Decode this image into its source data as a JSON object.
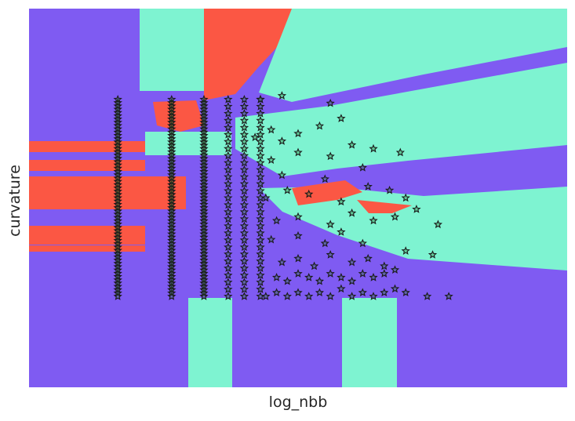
{
  "chart_data": {
    "type": "scatter",
    "title": "",
    "xlabel": "log_nbb",
    "ylabel": "curvature",
    "xlim": [
      0,
      1
    ],
    "ylim": [
      0,
      1
    ],
    "grid": false,
    "legend": "none",
    "ticks": "hidden",
    "colors": {
      "region_a": "#7f5bf2",
      "region_b": "#7ef3d1",
      "region_c": "#fb5744",
      "marker_edge": "#1a1a1a",
      "marker_fill": "#2f7a2f"
    },
    "marker": "star",
    "column_x": [
      0.165,
      0.265,
      0.325,
      0.37,
      0.4,
      0.43
    ],
    "column_y_range": [
      0.24,
      0.76
    ],
    "series": [
      {
        "x": [
          0.44,
          0.46,
          0.48,
          0.5,
          0.52,
          0.54,
          0.56,
          0.58,
          0.6,
          0.62,
          0.64,
          0.66,
          0.68,
          0.7,
          0.74,
          0.78,
          0.46,
          0.48,
          0.5,
          0.52,
          0.54,
          0.56,
          0.58,
          0.6,
          0.62,
          0.64,
          0.66,
          0.68,
          0.47,
          0.5,
          0.53,
          0.56,
          0.6,
          0.63,
          0.66,
          0.7,
          0.75,
          0.45,
          0.5,
          0.55,
          0.58,
          0.62,
          0.46,
          0.5,
          0.56,
          0.6,
          0.64,
          0.68,
          0.72,
          0.76,
          0.44,
          0.48,
          0.52,
          0.58,
          0.63,
          0.67,
          0.7,
          0.47,
          0.55,
          0.62,
          0.45,
          0.5,
          0.56,
          0.6,
          0.64,
          0.69,
          0.42,
          0.45,
          0.47,
          0.5,
          0.54,
          0.58,
          0.56,
          0.43,
          0.47
        ],
        "y": [
          0.24,
          0.25,
          0.24,
          0.25,
          0.24,
          0.25,
          0.24,
          0.26,
          0.24,
          0.25,
          0.24,
          0.25,
          0.26,
          0.25,
          0.24,
          0.24,
          0.29,
          0.28,
          0.3,
          0.29,
          0.28,
          0.3,
          0.29,
          0.28,
          0.3,
          0.29,
          0.3,
          0.31,
          0.33,
          0.34,
          0.32,
          0.35,
          0.33,
          0.34,
          0.32,
          0.36,
          0.35,
          0.39,
          0.4,
          0.38,
          0.41,
          0.38,
          0.44,
          0.45,
          0.43,
          0.46,
          0.44,
          0.45,
          0.47,
          0.43,
          0.5,
          0.52,
          0.51,
          0.49,
          0.53,
          0.52,
          0.5,
          0.56,
          0.55,
          0.58,
          0.6,
          0.62,
          0.61,
          0.64,
          0.63,
          0.62,
          0.66,
          0.68,
          0.65,
          0.67,
          0.69,
          0.71,
          0.75,
          0.76,
          0.77
        ]
      }
    ]
  }
}
